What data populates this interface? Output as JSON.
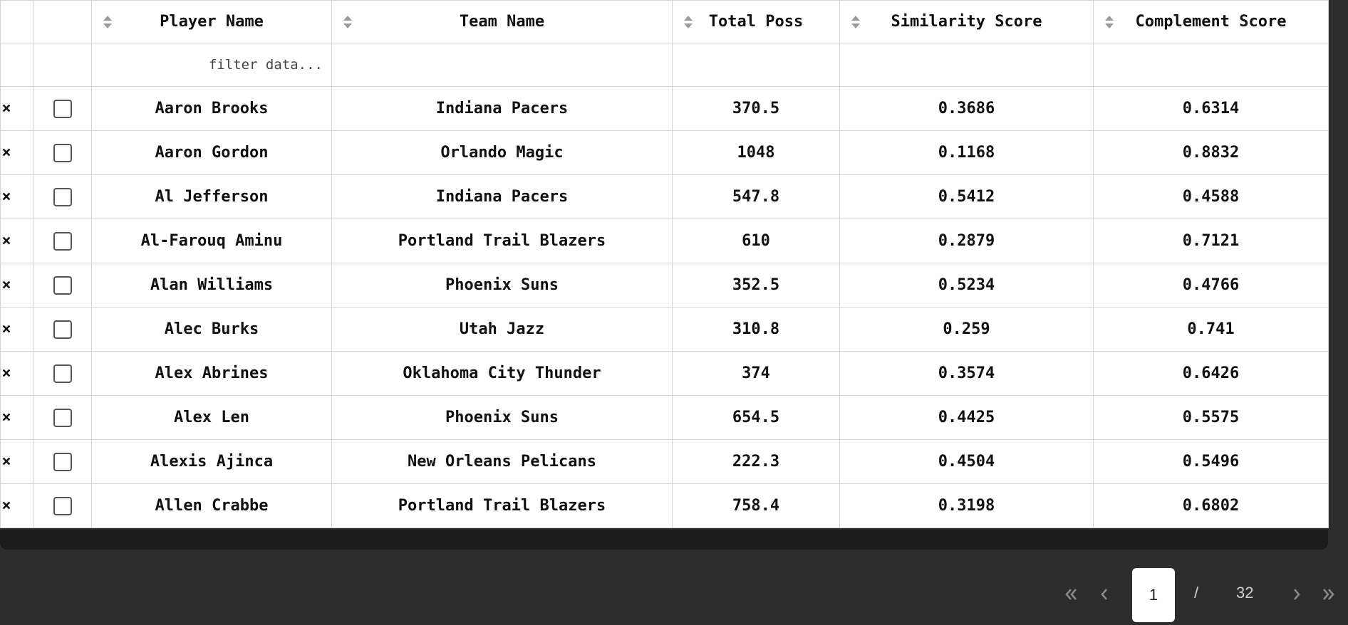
{
  "table": {
    "columns": [
      "Player Name",
      "Team Name",
      "Total Poss",
      "Similarity Score",
      "Complement Score"
    ],
    "filter_placeholder": "filter data...",
    "delete_glyph": "×",
    "rows": [
      {
        "player": "Aaron Brooks",
        "team": "Indiana Pacers",
        "poss": "370.5",
        "similarity": "0.3686",
        "complement": "0.6314"
      },
      {
        "player": "Aaron Gordon",
        "team": "Orlando Magic",
        "poss": "1048",
        "similarity": "0.1168",
        "complement": "0.8832"
      },
      {
        "player": "Al Jefferson",
        "team": "Indiana Pacers",
        "poss": "547.8",
        "similarity": "0.5412",
        "complement": "0.4588"
      },
      {
        "player": "Al-Farouq Aminu",
        "team": "Portland Trail Blazers",
        "poss": "610",
        "similarity": "0.2879",
        "complement": "0.7121"
      },
      {
        "player": "Alan Williams",
        "team": "Phoenix Suns",
        "poss": "352.5",
        "similarity": "0.5234",
        "complement": "0.4766"
      },
      {
        "player": "Alec Burks",
        "team": "Utah Jazz",
        "poss": "310.8",
        "similarity": "0.259",
        "complement": "0.741"
      },
      {
        "player": "Alex Abrines",
        "team": "Oklahoma City Thunder",
        "poss": "374",
        "similarity": "0.3574",
        "complement": "0.6426"
      },
      {
        "player": "Alex Len",
        "team": "Phoenix Suns",
        "poss": "654.5",
        "similarity": "0.4425",
        "complement": "0.5575"
      },
      {
        "player": "Alexis Ajinca",
        "team": "New Orleans Pelicans",
        "poss": "222.3",
        "similarity": "0.4504",
        "complement": "0.5496"
      },
      {
        "player": "Allen Crabbe",
        "team": "Portland Trail Blazers",
        "poss": "758.4",
        "similarity": "0.3198",
        "complement": "0.6802"
      }
    ]
  },
  "pagination": {
    "current_page": "1",
    "separator": "/",
    "total_pages": "32",
    "icons": [
      "first-page-icon",
      "prev-page-icon",
      "next-page-icon",
      "last-page-icon"
    ]
  },
  "colors": {
    "background": "#2d2d2d",
    "table_bg": "#ffffff",
    "border": "#d6d6d6",
    "scrollbar": "#1b1b1b"
  }
}
